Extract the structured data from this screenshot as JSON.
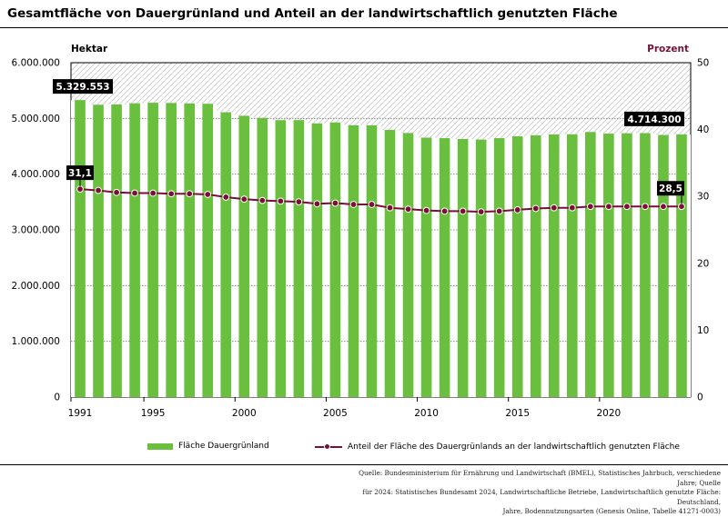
{
  "header": {
    "title": "Gesamtfläche von Dauergrünland und Anteil an der landwirtschaftlich genutzten Fläche"
  },
  "legend": {
    "bar_label": "Fläche Dauergrünland",
    "line_label": "Anteil der Fläche des Dauergrünlands an der landwirtschaftlich genutzten Fläche"
  },
  "source": {
    "lines": [
      "Quelle: Bundesministerium für Ernährung und Landwirtschaft (BMEL), Statistisches Jahrbuch, verschiedene Jahre; Quelle",
      "für 2024: Statistisches Bundesamt 2024, Landwirtschaftliche Betriebe, Landwirtschaftlich genutzte Fläche: Deutschland,",
      "Jahre, Bodennutzungsarten (Genesis Online, Tabelle 41271-0003)"
    ]
  },
  "colors": {
    "bar": "#6abf3f",
    "line": "#7a0f3a",
    "percent_label": "#7a0f3a",
    "callout_bg": "#000000"
  },
  "chart_data": {
    "type": "bar",
    "title": "Gesamtfläche von Dauergrünland und Anteil an der landwirtschaftlich genutzten Fläche",
    "y_left_label": "Hektar",
    "y_right_label": "Prozent",
    "ylim_left": [
      0,
      6000000
    ],
    "ylim_right": [
      0,
      50
    ],
    "y_left_ticks": [
      "0",
      "1.000.000",
      "2.000.000",
      "3.000.000",
      "4.000.000",
      "5.000.000",
      "6.000.000"
    ],
    "y_right_ticks": [
      "0",
      "10",
      "20",
      "30",
      "40",
      "50"
    ],
    "x_tick_labels": [
      {
        "year": 1991,
        "label": "1991"
      },
      {
        "year": 1995,
        "label": "1995"
      },
      {
        "year": 2000,
        "label": "2000"
      },
      {
        "year": 2005,
        "label": "2005"
      },
      {
        "year": 2010,
        "label": "2010"
      },
      {
        "year": 2015,
        "label": "2015"
      },
      {
        "year": 2020,
        "label": "2020"
      }
    ],
    "categories": [
      1991,
      1992,
      1993,
      1994,
      1995,
      1996,
      1997,
      1998,
      1999,
      2000,
      2001,
      2002,
      2003,
      2004,
      2005,
      2006,
      2007,
      2008,
      2009,
      2010,
      2011,
      2012,
      2013,
      2014,
      2015,
      2016,
      2017,
      2018,
      2019,
      2020,
      2021,
      2022,
      2023,
      2024
    ],
    "series": [
      {
        "name": "Fläche Dauergrünland",
        "type": "bar",
        "axis": "left",
        "values": [
          5329553,
          5245000,
          5251000,
          5272000,
          5281000,
          5277000,
          5270000,
          5263000,
          5110000,
          5048000,
          5010000,
          4969000,
          4970000,
          4911000,
          4928000,
          4878000,
          4877000,
          4793000,
          4738000,
          4655000,
          4646000,
          4630000,
          4621000,
          4646000,
          4679000,
          4698000,
          4712000,
          4715000,
          4756000,
          4727000,
          4734000,
          4736000,
          4703000,
          4714300
        ]
      },
      {
        "name": "Anteil der Fläche des Dauergrünlands an der landwirtschaftlich genutzten Fläche",
        "type": "line",
        "axis": "right",
        "values": [
          31.1,
          30.9,
          30.6,
          30.5,
          30.5,
          30.4,
          30.4,
          30.3,
          29.9,
          29.6,
          29.4,
          29.3,
          29.2,
          28.9,
          29.0,
          28.8,
          28.8,
          28.3,
          28.1,
          27.9,
          27.8,
          27.8,
          27.7,
          27.8,
          28.0,
          28.2,
          28.3,
          28.3,
          28.5,
          28.5,
          28.5,
          28.5,
          28.5,
          28.5
        ]
      }
    ],
    "annotations": [
      {
        "text": "5.329.553",
        "series": 0,
        "index": 0
      },
      {
        "text": "4.714.300",
        "series": 0,
        "index": 33
      },
      {
        "text": "31,1",
        "series": 1,
        "index": 0
      },
      {
        "text": "28,5",
        "series": 1,
        "index": 33
      }
    ]
  }
}
